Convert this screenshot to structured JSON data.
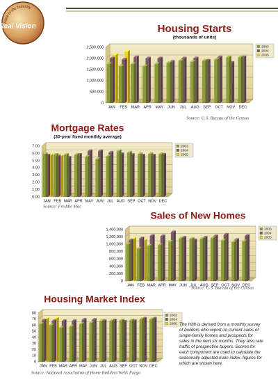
{
  "header": {
    "logo_arc": "State of the Industry",
    "logo_title": "Real Vision"
  },
  "chart_data": [
    {
      "type": "bar3d",
      "title": "Housing Starts",
      "subtitle": "(thousands of units)",
      "categories": [
        "JAN",
        "FEB",
        "MAR",
        "APR",
        "MAY",
        "JUN",
        "JUL",
        "AUG",
        "SEP",
        "OCT",
        "NOV",
        "DEC"
      ],
      "series": [
        {
          "name": "2003",
          "color": "#8c9c3c",
          "values": [
            1750000,
            1650000,
            1750000,
            1650000,
            1750000,
            1800000,
            1900000,
            1850000,
            1900000,
            1950000,
            2050000,
            2050000
          ]
        },
        {
          "name": "2004",
          "color": "#7a5868",
          "values": [
            2000000,
            1950000,
            2050000,
            2000000,
            2000000,
            1850000,
            2000000,
            2000000,
            1900000,
            2050000,
            1800000,
            2050000
          ]
        },
        {
          "name": "2005",
          "color": "#f2d41c",
          "values": [
            2150000,
            2300000,
            null,
            null,
            null,
            null,
            null,
            null,
            null,
            null,
            null,
            null
          ]
        }
      ],
      "ylim": [
        0,
        2500000
      ],
      "yticks": [
        0,
        {
          "value": 500000,
          "label": "500,000"
        },
        {
          "value": 1000000,
          "label": "1,000,000"
        },
        {
          "value": 1500000,
          "label": "1,500,000"
        },
        {
          "value": 2000000,
          "label": "2,000,000"
        },
        {
          "value": 2500000,
          "label": "2,500,000"
        }
      ],
      "grid": true,
      "legend": "top-right",
      "source": "Source: U.S. Bureau of the Census"
    },
    {
      "type": "bar3d",
      "title": "Mortgage Rates",
      "subtitle": "(30-year fixed monthly average)",
      "categories": [
        "JAN",
        "FEB",
        "MAR",
        "APR",
        "MAY",
        "JUN",
        "JUL",
        "AUG",
        "SEP",
        "OCT",
        "NOV",
        "DEC"
      ],
      "series": [
        {
          "name": "2003",
          "color": "#8c9c3c",
          "values": [
            5.9,
            5.8,
            5.8,
            5.8,
            5.5,
            5.2,
            5.6,
            6.3,
            6.1,
            5.9,
            5.9,
            5.9
          ]
        },
        {
          "name": "2004",
          "color": "#7a5868",
          "values": [
            5.7,
            5.6,
            5.4,
            5.8,
            6.3,
            6.3,
            6.1,
            5.9,
            5.8,
            5.7,
            5.7,
            5.8
          ]
        },
        {
          "name": "2005",
          "color": "#f2d41c",
          "values": [
            5.7,
            5.6,
            null,
            null,
            null,
            null,
            null,
            null,
            null,
            null,
            null,
            null
          ]
        }
      ],
      "ylim": [
        0,
        7
      ],
      "yticks": [
        {
          "value": 0,
          "label": "0.00"
        },
        {
          "value": 1,
          "label": "1.00"
        },
        {
          "value": 2,
          "label": "2.00"
        },
        {
          "value": 3,
          "label": "3.00"
        },
        {
          "value": 4,
          "label": "4.00"
        },
        {
          "value": 5,
          "label": "5.00"
        },
        {
          "value": 6,
          "label": "6.00"
        },
        {
          "value": 7,
          "label": "7.00"
        }
      ],
      "grid": true,
      "legend": "top-right",
      "source": "Source: Freddie Mac"
    },
    {
      "type": "bar3d",
      "title": "Sales of New Homes",
      "categories": [
        "JAN",
        "FEB",
        "MAR",
        "APR",
        "MAY",
        "JUN",
        "JUL",
        "AUG",
        "SEP",
        "OCT",
        "NOV",
        "DEC"
      ],
      "series": [
        {
          "name": "2003",
          "color": "#8c9c3c",
          "values": [
            1000000,
            880000,
            960000,
            980000,
            1070000,
            1160000,
            1150000,
            1150000,
            1170000,
            1100000,
            1060000,
            1080000
          ]
        },
        {
          "name": "2004",
          "color": "#7a5868",
          "values": [
            1110000,
            1160000,
            1230000,
            1220000,
            1330000,
            1180000,
            1110000,
            1180000,
            1220000,
            1260000,
            1120000,
            1230000
          ]
        },
        {
          "name": "2005",
          "color": "#f2d41c",
          "values": [
            1150000,
            1100000,
            null,
            null,
            null,
            null,
            null,
            null,
            null,
            null,
            null,
            null
          ]
        }
      ],
      "ylim": [
        0,
        1400000
      ],
      "yticks": [
        0,
        {
          "value": 200000,
          "label": "200,000"
        },
        {
          "value": 400000,
          "label": "400,000"
        },
        {
          "value": 600000,
          "label": "600,000"
        },
        {
          "value": 800000,
          "label": "800,000"
        },
        {
          "value": 1000000,
          "label": "1,000,000"
        },
        {
          "value": 1200000,
          "label": "1,200,000"
        },
        {
          "value": 1400000,
          "label": "1,400,000"
        }
      ],
      "grid": true,
      "legend": "top-right",
      "source": "Source: U.S. Bureau of the Census"
    },
    {
      "type": "bar3d",
      "title": "Housing Market Index",
      "categories": [
        "JAN",
        "FEB",
        "MAR",
        "APR",
        "MAY",
        "JUN",
        "JUL",
        "AUG",
        "SEP",
        "OCT",
        "NOV",
        "DEC"
      ],
      "series": [
        {
          "name": "2003",
          "color": "#8c9c3c",
          "values": [
            62,
            60,
            56,
            58,
            62,
            64,
            67,
            67,
            68,
            68,
            70,
            70
          ]
        },
        {
          "name": "2004",
          "color": "#7a5868",
          "values": [
            68,
            67,
            67,
            67,
            69,
            69,
            67,
            68,
            66,
            67,
            71,
            71
          ]
        },
        {
          "name": "2005",
          "color": "#f2d41c",
          "values": [
            70,
            71,
            null,
            null,
            null,
            null,
            null,
            null,
            null,
            null,
            null,
            null
          ]
        }
      ],
      "ylim": [
        0,
        80
      ],
      "yticks": [
        0,
        10,
        20,
        30,
        40,
        50,
        60,
        70,
        80
      ],
      "grid": true,
      "legend": "top-right",
      "source": "Source: National Association of Home Builders/Wells Fargo"
    }
  ],
  "note": "The HMI is derived from a monthly survey of builders who report on current sales of single-family homes and prospects for sales in the next six months. They also rate traffic of prospective buyers. Scores for each component are used to calculate the seasonally adjusted main index, figures for which are shown here."
}
